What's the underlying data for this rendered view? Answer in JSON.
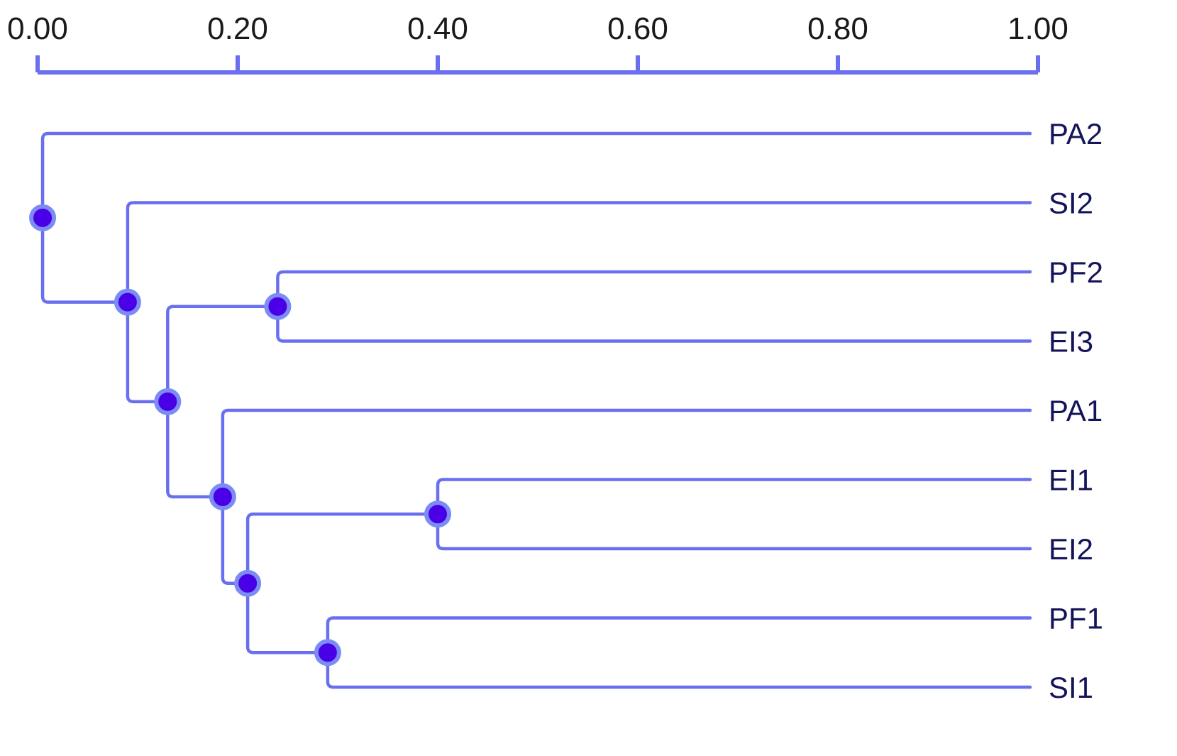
{
  "chart_data": {
    "type": "dendrogram",
    "axis": {
      "position": "top",
      "range": [
        0.0,
        1.0
      ],
      "ticks": [
        0.0,
        0.2,
        0.4,
        0.6,
        0.8,
        1.0
      ],
      "tick_labels": [
        "0.00",
        "0.20",
        "0.40",
        "0.60",
        "0.80",
        "1.00"
      ]
    },
    "leaves": [
      "PA2",
      "SI2",
      "PF2",
      "EI3",
      "PA1",
      "EI1",
      "EI2",
      "PF1",
      "SI1"
    ],
    "merges": [
      {
        "id": "n_pf2_ei3",
        "height": 0.24,
        "children": [
          "PF2",
          "EI3"
        ]
      },
      {
        "id": "n_ei1_ei2",
        "height": 0.4,
        "children": [
          "EI1",
          "EI2"
        ]
      },
      {
        "id": "n_pf1_si1",
        "height": 0.29,
        "children": [
          "PF1",
          "SI1"
        ]
      },
      {
        "id": "n_ei12_pfsi1",
        "height": 0.21,
        "children": [
          "n_ei1_ei2",
          "n_pf1_si1"
        ]
      },
      {
        "id": "n_pa1_group",
        "height": 0.185,
        "children": [
          "PA1",
          "n_ei12_pfsi1"
        ]
      },
      {
        "id": "n_pf2ei3_pa1grp",
        "height": 0.13,
        "children": [
          "n_pf2_ei3",
          "n_pa1_group"
        ]
      },
      {
        "id": "n_si2_group",
        "height": 0.09,
        "children": [
          "SI2",
          "n_pf2ei3_pa1grp"
        ]
      },
      {
        "id": "n_root",
        "height": 0.005,
        "children": [
          "PA2",
          "n_si2_group"
        ]
      }
    ],
    "colors": {
      "line": "#6a6ff0",
      "node_fill": "#4a00e6",
      "node_stroke": "#7b8cf5",
      "label_text": "#14145a"
    }
  }
}
